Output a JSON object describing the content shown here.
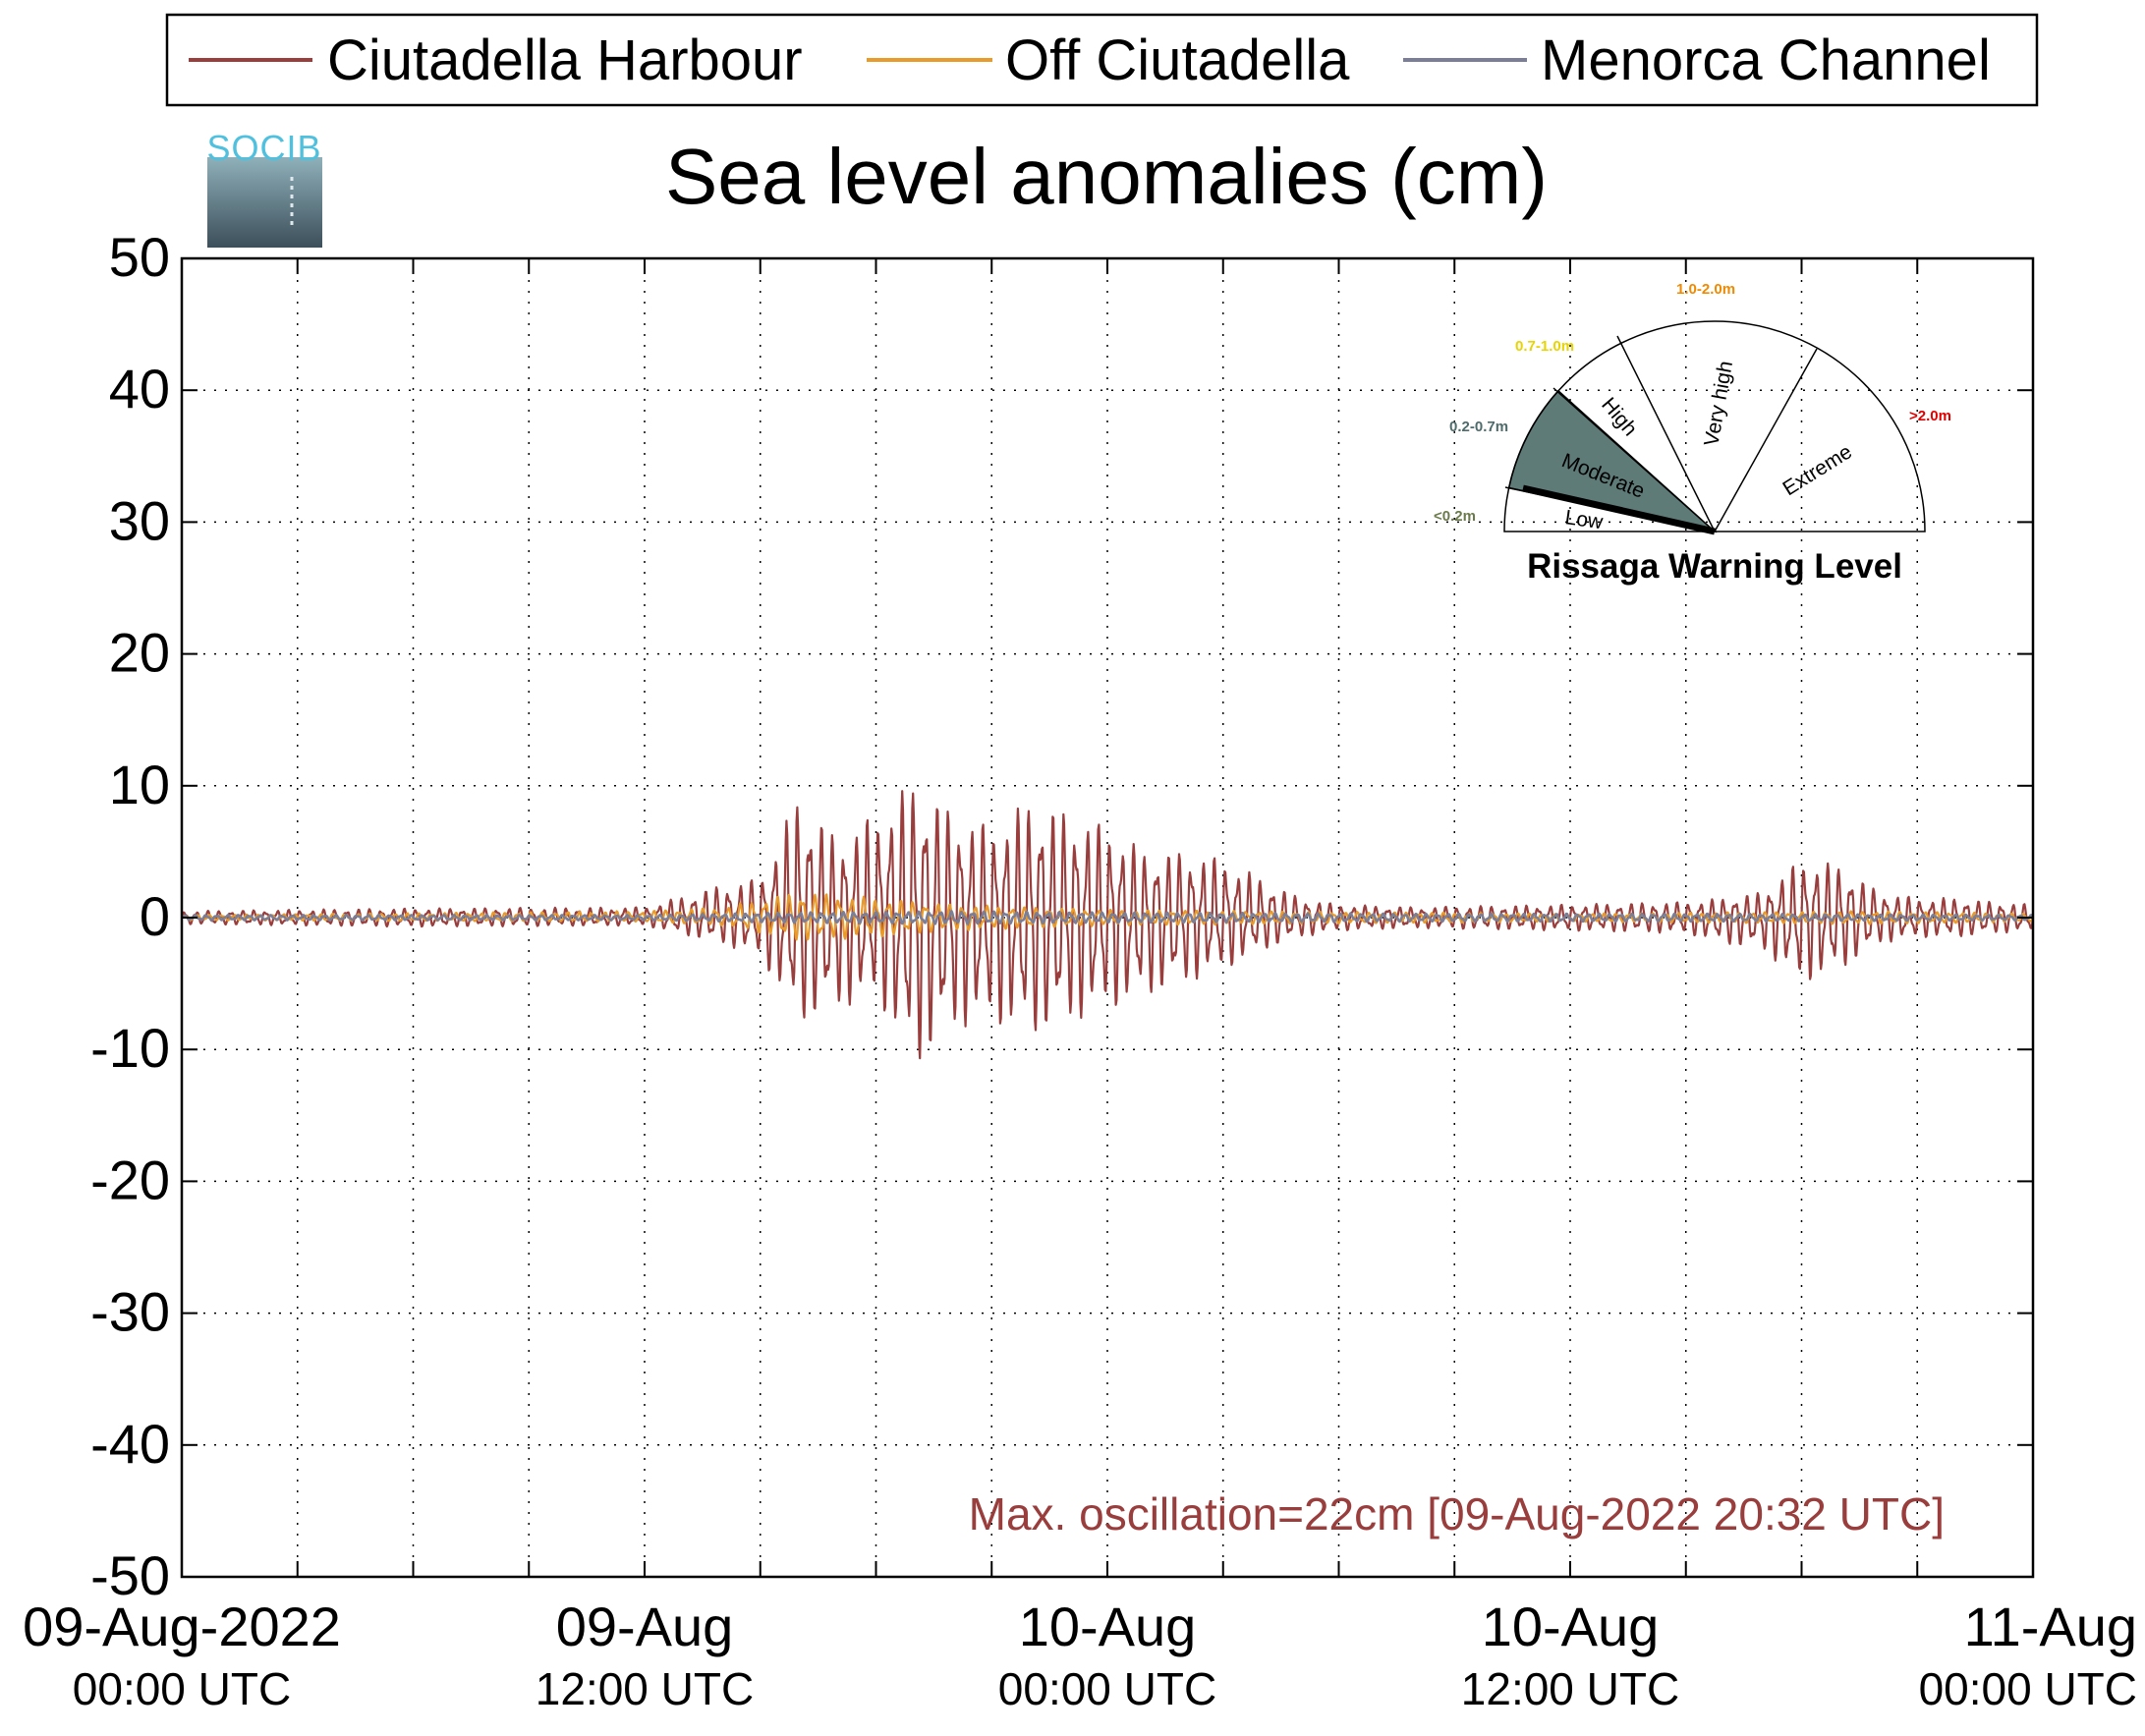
{
  "chart_data": {
    "type": "line",
    "title": "Sea level anomalies (cm)",
    "logo_text": "SOCIB",
    "ylim": [
      -50,
      50
    ],
    "yticks": [
      50,
      40,
      30,
      20,
      10,
      0,
      -10,
      -20,
      -30,
      -40,
      -50
    ],
    "ytick_labels": [
      "50",
      "40",
      "30",
      "20",
      "10",
      "0",
      "-10",
      "-20",
      "-30",
      "-40",
      "-50"
    ],
    "xlim_hours": [
      0,
      48
    ],
    "x_major_ticks": [
      {
        "hour": 0,
        "label1": "09-Aug-2022",
        "label2": "00:00 UTC"
      },
      {
        "hour": 12,
        "label1": "09-Aug",
        "label2": "12:00 UTC"
      },
      {
        "hour": 24,
        "label1": "10-Aug",
        "label2": "00:00 UTC"
      },
      {
        "hour": 36,
        "label1": "10-Aug",
        "label2": "12:00 UTC"
      },
      {
        "hour": 48,
        "label1": "11-Aug",
        "label2": "00:00 UTC"
      }
    ],
    "x_minor_step_hours": 3,
    "grid": true,
    "legend_position": "top",
    "series": [
      {
        "name": "Ciutadella Harbour",
        "color": "#9a3d3d",
        "envelope_hours": [
          0,
          6,
          12,
          14,
          15,
          16,
          17,
          18,
          19,
          20,
          21,
          22,
          23,
          24,
          25,
          26,
          27,
          28,
          29,
          30,
          32,
          36,
          39,
          40,
          41,
          42,
          43,
          44,
          45,
          46,
          47,
          48
        ],
        "envelope_upper": [
          0.5,
          0.7,
          0.8,
          2.5,
          3,
          9.5,
          6,
          8,
          10.5,
          8,
          7,
          9,
          8,
          7,
          5,
          5,
          4.5,
          3,
          1.5,
          1,
          0.8,
          1,
          1.2,
          1.5,
          2,
          4.5,
          4,
          2,
          1.5,
          1.5,
          1.2,
          1
        ],
        "envelope_lower": [
          -0.5,
          -0.7,
          -0.6,
          -2,
          -3,
          -8,
          -7,
          -6,
          -11.5,
          -8.5,
          -8,
          -9,
          -8,
          -7,
          -6,
          -5,
          -4,
          -2.5,
          -1.5,
          -1,
          -0.8,
          -1,
          -1.2,
          -2,
          -2.5,
          -5,
          -4,
          -2,
          -1.5,
          -1.5,
          -1.2,
          -1
        ]
      },
      {
        "name": "Off Ciutadella",
        "color": "#e89a2a",
        "envelope_hours": [
          0,
          12,
          14,
          16,
          18,
          20,
          22,
          24,
          28,
          32,
          36,
          44,
          48
        ],
        "envelope_upper": [
          0.2,
          0.5,
          0.8,
          2,
          1.5,
          1,
          0.8,
          0.6,
          0.5,
          0.4,
          0.3,
          0.5,
          0.3
        ],
        "envelope_lower": [
          -0.2,
          -0.3,
          -0.6,
          -1.8,
          -1.5,
          -1,
          -0.8,
          -0.6,
          -0.5,
          -0.4,
          -0.3,
          -0.5,
          -0.3
        ]
      },
      {
        "name": "Menorca Channel",
        "color": "#7a7f97",
        "envelope_hours": [
          0,
          12,
          16,
          20,
          24,
          32,
          40,
          48
        ],
        "envelope_upper": [
          0.2,
          0.2,
          0.4,
          0.5,
          0.4,
          0.3,
          0.3,
          0.2
        ],
        "envelope_lower": [
          -0.2,
          -0.2,
          -0.4,
          -0.5,
          -0.4,
          -0.3,
          -0.3,
          -0.2
        ]
      }
    ],
    "annotation": {
      "text": "Max. oscillation=22cm [09-Aug-2022 20:32 UTC]",
      "color": "#9a3d3d"
    },
    "warning_gauge": {
      "title": "Rissaga Warning Level",
      "levels": [
        {
          "name": "Low",
          "range": "<0.2m",
          "range_color": "#6b7a4a"
        },
        {
          "name": "Moderate",
          "range": "0.2-0.7m",
          "range_color": "#4f6b6b"
        },
        {
          "name": "High",
          "range": "0.7-1.0m",
          "range_color": "#e8d400"
        },
        {
          "name": "Very high",
          "range": "1.0-2.0m",
          "range_color": "#f08a00"
        },
        {
          "name": "Extreme",
          "range": ">2.0m",
          "range_color": "#e00000"
        }
      ],
      "active_level": "Moderate",
      "active_fill": "#5e7b78",
      "needle_level": "Low"
    }
  }
}
